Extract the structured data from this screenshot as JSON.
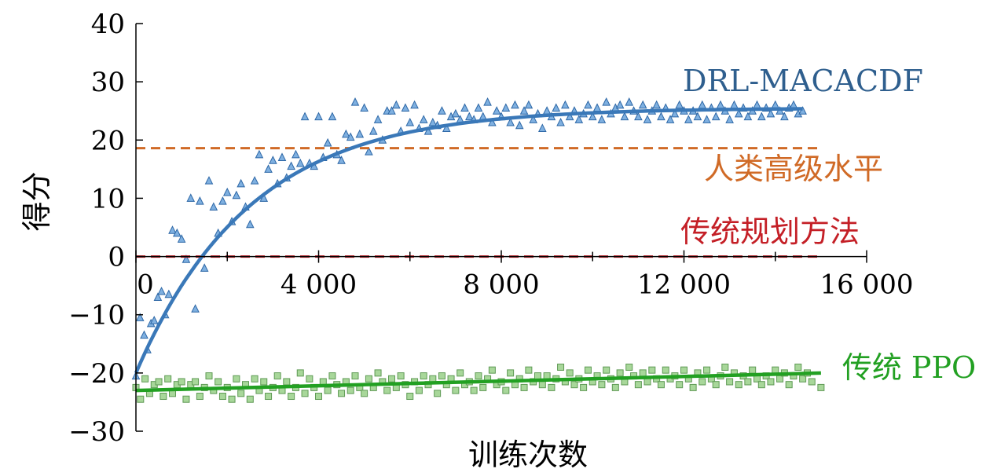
{
  "chart_data": {
    "type": "scatter",
    "xlabel": "训练次数",
    "ylabel": "得分",
    "xlim": [
      0,
      16000
    ],
    "ylim": [
      -30,
      40
    ],
    "x_ticks": [
      0,
      4000,
      8000,
      12000,
      16000
    ],
    "x_tick_labels": [
      "0",
      "4 000",
      "8 000",
      "12 000",
      "16 000"
    ],
    "y_ticks": [
      -30,
      -20,
      -10,
      0,
      10,
      20,
      30,
      40
    ],
    "y_tick_labels": [
      "−30",
      "−20",
      "−10",
      "0",
      "10",
      "20",
      "30",
      "40"
    ],
    "grid": false,
    "legend": "inline labels at right",
    "series": [
      {
        "name": "DRL-MACACDF",
        "color": "#3a78b8",
        "marker": "triangle",
        "fit": "exponential",
        "fit_curve": {
          "start": -20,
          "plateau": 25.5,
          "scale": 2500,
          "x_end": 14600
        },
        "points": [
          [
            0,
            -20.5
          ],
          [
            90,
            -10.5
          ],
          [
            180,
            -13.5
          ],
          [
            250,
            -16
          ],
          [
            330,
            -11.5
          ],
          [
            400,
            -11
          ],
          [
            480,
            -7
          ],
          [
            560,
            -6
          ],
          [
            640,
            -10
          ],
          [
            720,
            -6.5
          ],
          [
            800,
            4.5
          ],
          [
            900,
            4
          ],
          [
            1000,
            3
          ],
          [
            1100,
            -0.5
          ],
          [
            1200,
            10
          ],
          [
            1300,
            -9
          ],
          [
            1400,
            9.5
          ],
          [
            1500,
            -2
          ],
          [
            1600,
            13
          ],
          [
            1700,
            8.5
          ],
          [
            1800,
            4
          ],
          [
            1900,
            9.5
          ],
          [
            2000,
            11
          ],
          [
            2100,
            6
          ],
          [
            2200,
            10.5
          ],
          [
            2300,
            12.5
          ],
          [
            2400,
            8.5
          ],
          [
            2500,
            5.5
          ],
          [
            2600,
            13
          ],
          [
            2700,
            17.5
          ],
          [
            2800,
            10
          ],
          [
            2900,
            15
          ],
          [
            3000,
            16.5
          ],
          [
            3100,
            12.5
          ],
          [
            3200,
            17
          ],
          [
            3300,
            13.5
          ],
          [
            3400,
            15.5
          ],
          [
            3500,
            17.5
          ],
          [
            3600,
            16
          ],
          [
            3700,
            24
          ],
          [
            3800,
            16
          ],
          [
            3900,
            15.5
          ],
          [
            4000,
            24
          ],
          [
            4100,
            17
          ],
          [
            4200,
            19.5
          ],
          [
            4300,
            24
          ],
          [
            4400,
            17.5
          ],
          [
            4500,
            16.5
          ],
          [
            4600,
            21
          ],
          [
            4700,
            20.5
          ],
          [
            4800,
            26.5
          ],
          [
            4900,
            21
          ],
          [
            5000,
            25.5
          ],
          [
            5100,
            18
          ],
          [
            5200,
            21.5
          ],
          [
            5300,
            23.5
          ],
          [
            5400,
            20
          ],
          [
            5500,
            25
          ],
          [
            5600,
            25
          ],
          [
            5700,
            26
          ],
          [
            5800,
            21.5
          ],
          [
            5900,
            25.5
          ],
          [
            6000,
            23
          ],
          [
            6100,
            26
          ],
          [
            6200,
            22
          ],
          [
            6300,
            23.5
          ],
          [
            6400,
            21.5
          ],
          [
            6500,
            23
          ],
          [
            6600,
            22.5
          ],
          [
            6700,
            25
          ],
          [
            6800,
            22
          ],
          [
            6900,
            24
          ],
          [
            7000,
            24.5
          ],
          [
            7100,
            23.5
          ],
          [
            7200,
            25.5
          ],
          [
            7300,
            24
          ],
          [
            7400,
            23.5
          ],
          [
            7500,
            25.5
          ],
          [
            7600,
            24
          ],
          [
            7700,
            26.5
          ],
          [
            7800,
            23
          ],
          [
            7900,
            25
          ],
          [
            8000,
            24
          ],
          [
            8100,
            25.5
          ],
          [
            8200,
            23
          ],
          [
            8300,
            26
          ],
          [
            8400,
            22.5
          ],
          [
            8500,
            25
          ],
          [
            8600,
            26
          ],
          [
            8700,
            23.5
          ],
          [
            8800,
            24.5
          ],
          [
            8900,
            22
          ],
          [
            9000,
            25
          ],
          [
            9100,
            24
          ],
          [
            9200,
            25.5
          ],
          [
            9300,
            23
          ],
          [
            9400,
            26
          ],
          [
            9500,
            24
          ],
          [
            9600,
            25
          ],
          [
            9700,
            23.5
          ],
          [
            9800,
            24.5
          ],
          [
            9900,
            26
          ],
          [
            10000,
            24
          ],
          [
            10100,
            25.5
          ],
          [
            10200,
            23.5
          ],
          [
            10300,
            26.5
          ],
          [
            10400,
            24.5
          ],
          [
            10500,
            25.5
          ],
          [
            10600,
            26
          ],
          [
            10700,
            24
          ],
          [
            10800,
            26.5
          ],
          [
            10900,
            25
          ],
          [
            11000,
            24
          ],
          [
            11100,
            26
          ],
          [
            11200,
            23.5
          ],
          [
            11300,
            25
          ],
          [
            11400,
            26
          ],
          [
            11500,
            24
          ],
          [
            11600,
            25.5
          ],
          [
            11700,
            23.5
          ],
          [
            11800,
            24.5
          ],
          [
            11900,
            26
          ],
          [
            12000,
            25
          ],
          [
            12100,
            23.5
          ],
          [
            12200,
            25
          ],
          [
            12300,
            24
          ],
          [
            12400,
            26
          ],
          [
            12500,
            23.5
          ],
          [
            12600,
            25.5
          ],
          [
            12700,
            24
          ],
          [
            12800,
            26
          ],
          [
            12900,
            25
          ],
          [
            13000,
            23.5
          ],
          [
            13100,
            26
          ],
          [
            13200,
            24.5
          ],
          [
            13300,
            25.5
          ],
          [
            13400,
            24
          ],
          [
            13500,
            25
          ],
          [
            13600,
            26
          ],
          [
            13700,
            24
          ],
          [
            13800,
            25.5
          ],
          [
            13900,
            24.5
          ],
          [
            14000,
            26
          ],
          [
            14100,
            25
          ],
          [
            14200,
            24
          ],
          [
            14300,
            25.5
          ],
          [
            14400,
            26
          ],
          [
            14500,
            24.5
          ],
          [
            14600,
            25
          ]
        ]
      },
      {
        "name": "人类高级水平",
        "color": "#d06a26",
        "style": "dashed",
        "y": 18.6,
        "x_range": [
          0,
          15000
        ]
      },
      {
        "name": "传统规划方法",
        "color": "#c41f26",
        "style": "dashed",
        "y": 0,
        "x_range": [
          0,
          15000
        ]
      },
      {
        "name": "传统 PPO",
        "color": "#22a022",
        "marker": "square",
        "fit": "linear",
        "fit_line": [
          [
            0,
            -23
          ],
          [
            15000,
            -20
          ]
        ],
        "points": [
          [
            0,
            -22.5
          ],
          [
            100,
            -24.5
          ],
          [
            200,
            -21
          ],
          [
            300,
            -23.5
          ],
          [
            400,
            -22
          ],
          [
            500,
            -21.5
          ],
          [
            600,
            -24
          ],
          [
            700,
            -21
          ],
          [
            800,
            -23.5
          ],
          [
            900,
            -22
          ],
          [
            1000,
            -21.5
          ],
          [
            1100,
            -24.5
          ],
          [
            1200,
            -22
          ],
          [
            1300,
            -21.5
          ],
          [
            1400,
            -24
          ],
          [
            1500,
            -22.5
          ],
          [
            1600,
            -20.5
          ],
          [
            1700,
            -23
          ],
          [
            1800,
            -21.5
          ],
          [
            1900,
            -24
          ],
          [
            2000,
            -22.5
          ],
          [
            2100,
            -24.5
          ],
          [
            2200,
            -21
          ],
          [
            2300,
            -23.5
          ],
          [
            2400,
            -22
          ],
          [
            2500,
            -24.5
          ],
          [
            2600,
            -21
          ],
          [
            2700,
            -23
          ],
          [
            2800,
            -21.5
          ],
          [
            2900,
            -24
          ],
          [
            3000,
            -22.5
          ],
          [
            3100,
            -20.5
          ],
          [
            3200,
            -23
          ],
          [
            3300,
            -21.5
          ],
          [
            3400,
            -24
          ],
          [
            3500,
            -22.5
          ],
          [
            3600,
            -20
          ],
          [
            3700,
            -23.5
          ],
          [
            3800,
            -21
          ],
          [
            3900,
            -22.5
          ],
          [
            4000,
            -24
          ],
          [
            4100,
            -21.5
          ],
          [
            4200,
            -23
          ],
          [
            4300,
            -20.5
          ],
          [
            4400,
            -22
          ],
          [
            4500,
            -23.5
          ],
          [
            4600,
            -21.5
          ],
          [
            4700,
            -23
          ],
          [
            4800,
            -20.5
          ],
          [
            4900,
            -22.5
          ],
          [
            5000,
            -23.5
          ],
          [
            5100,
            -21
          ],
          [
            5200,
            -22.5
          ],
          [
            5300,
            -20
          ],
          [
            5400,
            -21.5
          ],
          [
            5500,
            -23
          ],
          [
            5600,
            -21
          ],
          [
            5700,
            -22.5
          ],
          [
            5800,
            -20.5
          ],
          [
            5900,
            -22
          ],
          [
            6000,
            -24
          ],
          [
            6100,
            -21.5
          ],
          [
            6200,
            -23
          ],
          [
            6300,
            -20.5
          ],
          [
            6400,
            -22
          ],
          [
            6500,
            -21
          ],
          [
            6600,
            -23.5
          ],
          [
            6700,
            -20.5
          ],
          [
            6800,
            -22
          ],
          [
            6900,
            -21
          ],
          [
            7000,
            -23
          ],
          [
            7100,
            -20
          ],
          [
            7200,
            -22
          ],
          [
            7300,
            -21.5
          ],
          [
            7400,
            -23
          ],
          [
            7500,
            -20.5
          ],
          [
            7600,
            -22.5
          ],
          [
            7700,
            -21
          ],
          [
            7800,
            -19.5
          ],
          [
            7900,
            -22
          ],
          [
            8000,
            -21.5
          ],
          [
            8100,
            -23
          ],
          [
            8200,
            -20
          ],
          [
            8300,
            -22
          ],
          [
            8400,
            -21
          ],
          [
            8500,
            -22.5
          ],
          [
            8600,
            -19.5
          ],
          [
            8700,
            -21.5
          ],
          [
            8800,
            -20.5
          ],
          [
            8900,
            -22
          ],
          [
            9000,
            -20.5
          ],
          [
            9100,
            -22.5
          ],
          [
            9200,
            -21
          ],
          [
            9300,
            -19
          ],
          [
            9400,
            -21.5
          ],
          [
            9500,
            -20
          ],
          [
            9600,
            -22
          ],
          [
            9700,
            -21
          ],
          [
            9800,
            -22.5
          ],
          [
            9900,
            -19.5
          ],
          [
            10000,
            -21.5
          ],
          [
            10100,
            -20.5
          ],
          [
            10200,
            -22
          ],
          [
            10300,
            -19.5
          ],
          [
            10400,
            -21
          ],
          [
            10500,
            -22.5
          ],
          [
            10600,
            -20
          ],
          [
            10700,
            -21.5
          ],
          [
            10800,
            -19
          ],
          [
            10900,
            -20.5
          ],
          [
            11000,
            -22
          ],
          [
            11100,
            -20
          ],
          [
            11200,
            -21.5
          ],
          [
            11300,
            -19.5
          ],
          [
            11400,
            -21
          ],
          [
            11500,
            -22
          ],
          [
            11600,
            -19.5
          ],
          [
            11700,
            -21
          ],
          [
            11800,
            -20.5
          ],
          [
            11900,
            -22
          ],
          [
            12000,
            -19.5
          ],
          [
            12100,
            -21
          ],
          [
            12200,
            -22.5
          ],
          [
            12300,
            -20
          ],
          [
            12400,
            -21.5
          ],
          [
            12500,
            -19.5
          ],
          [
            12600,
            -21
          ],
          [
            12700,
            -22
          ],
          [
            12800,
            -20.5
          ],
          [
            12900,
            -19
          ],
          [
            13000,
            -21.5
          ],
          [
            13100,
            -20
          ],
          [
            13200,
            -22
          ],
          [
            13300,
            -20.5
          ],
          [
            13400,
            -21.5
          ],
          [
            13500,
            -19.5
          ],
          [
            13600,
            -21
          ],
          [
            13700,
            -22
          ],
          [
            13800,
            -20.5
          ],
          [
            13900,
            -21.5
          ],
          [
            14000,
            -19.5
          ],
          [
            14100,
            -21
          ],
          [
            14200,
            -20
          ],
          [
            14300,
            -22
          ],
          [
            14400,
            -20.5
          ],
          [
            14500,
            -19
          ],
          [
            14600,
            -21
          ],
          [
            14700,
            -20
          ],
          [
            14800,
            -21.5
          ],
          [
            15000,
            -22.5
          ]
        ]
      }
    ]
  }
}
